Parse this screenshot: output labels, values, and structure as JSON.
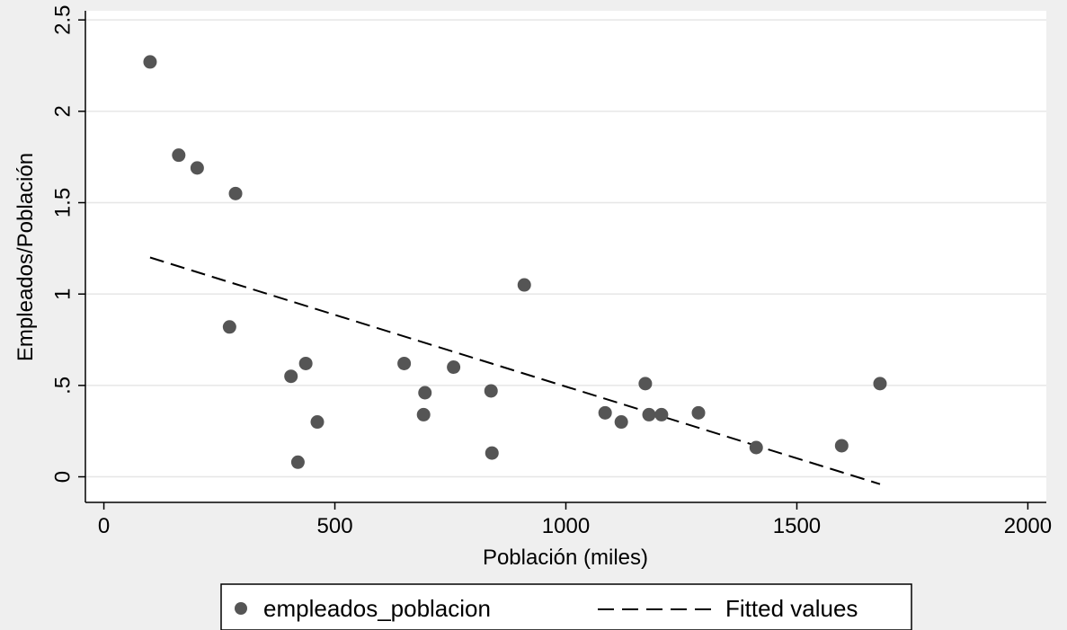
{
  "chart_data": {
    "type": "scatter",
    "title": "",
    "xlabel": "Población (miles)",
    "ylabel": "Empleados/Población",
    "xlim": [
      -40,
      2040
    ],
    "ylim": [
      -0.14,
      2.55
    ],
    "xticks": [
      0,
      500,
      1000,
      1500,
      2000
    ],
    "xtick_labels": [
      "0",
      "500",
      "1000",
      "1500",
      "2000"
    ],
    "yticks": [
      0,
      0.5,
      1,
      1.5,
      2,
      2.5
    ],
    "ytick_labels": [
      "0",
      ".5",
      "1",
      "1.5",
      "2",
      "2.5"
    ],
    "grid": "horizontal",
    "legend_position": "bottom",
    "series": [
      {
        "name": "empleados_poblacion",
        "kind": "scatter",
        "marker": "circle",
        "color": "#555555",
        "x": [
          100,
          162,
          202,
          285,
          272,
          405,
          437,
          462,
          420,
          650,
          695,
          692,
          757,
          838,
          840,
          910,
          1085,
          1120,
          1172,
          1180,
          1207,
          1287,
          1412,
          1597,
          1680
        ],
        "y": [
          2.27,
          1.76,
          1.69,
          1.55,
          0.82,
          0.55,
          0.62,
          0.3,
          0.08,
          0.62,
          0.46,
          0.34,
          0.6,
          0.47,
          0.13,
          1.05,
          0.35,
          0.3,
          0.51,
          0.34,
          0.34,
          0.35,
          0.16,
          0.17,
          0.51
        ]
      },
      {
        "name": "Fitted values",
        "kind": "line",
        "style": "dashed",
        "color": "#000000",
        "x": [
          100,
          1680
        ],
        "y": [
          1.2,
          -0.04
        ]
      }
    ]
  }
}
